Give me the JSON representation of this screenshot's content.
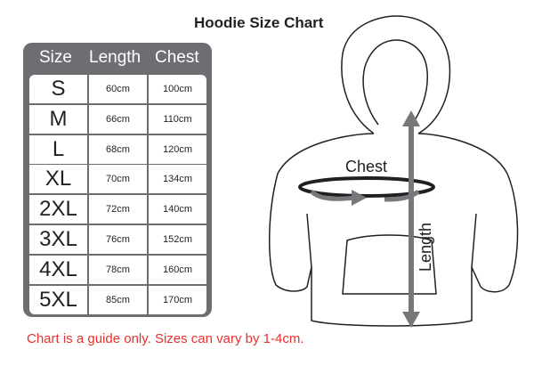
{
  "title": "Hoodie Size Chart",
  "table": {
    "headers": [
      "Size",
      "Length",
      "Chest"
    ],
    "rows": [
      {
        "size": "S",
        "length": "60cm",
        "chest": "100cm"
      },
      {
        "size": "M",
        "length": "66cm",
        "chest": "110cm"
      },
      {
        "size": "L",
        "length": "68cm",
        "chest": "120cm"
      },
      {
        "size": "XL",
        "length": "70cm",
        "chest": "134cm"
      },
      {
        "size": "2XL",
        "length": "72cm",
        "chest": "140cm"
      },
      {
        "size": "3XL",
        "length": "76cm",
        "chest": "152cm"
      },
      {
        "size": "4XL",
        "length": "78cm",
        "chest": "160cm"
      },
      {
        "size": "5XL",
        "length": "85cm",
        "chest": "170cm"
      }
    ]
  },
  "diagram": {
    "chest_label": "Chest",
    "length_label": "Length"
  },
  "note": "Chart is a guide only. Sizes can vary by 1-4cm.",
  "colors": {
    "table": "#6d6e71",
    "note": "#e8312f",
    "arrow": "#77787b"
  }
}
